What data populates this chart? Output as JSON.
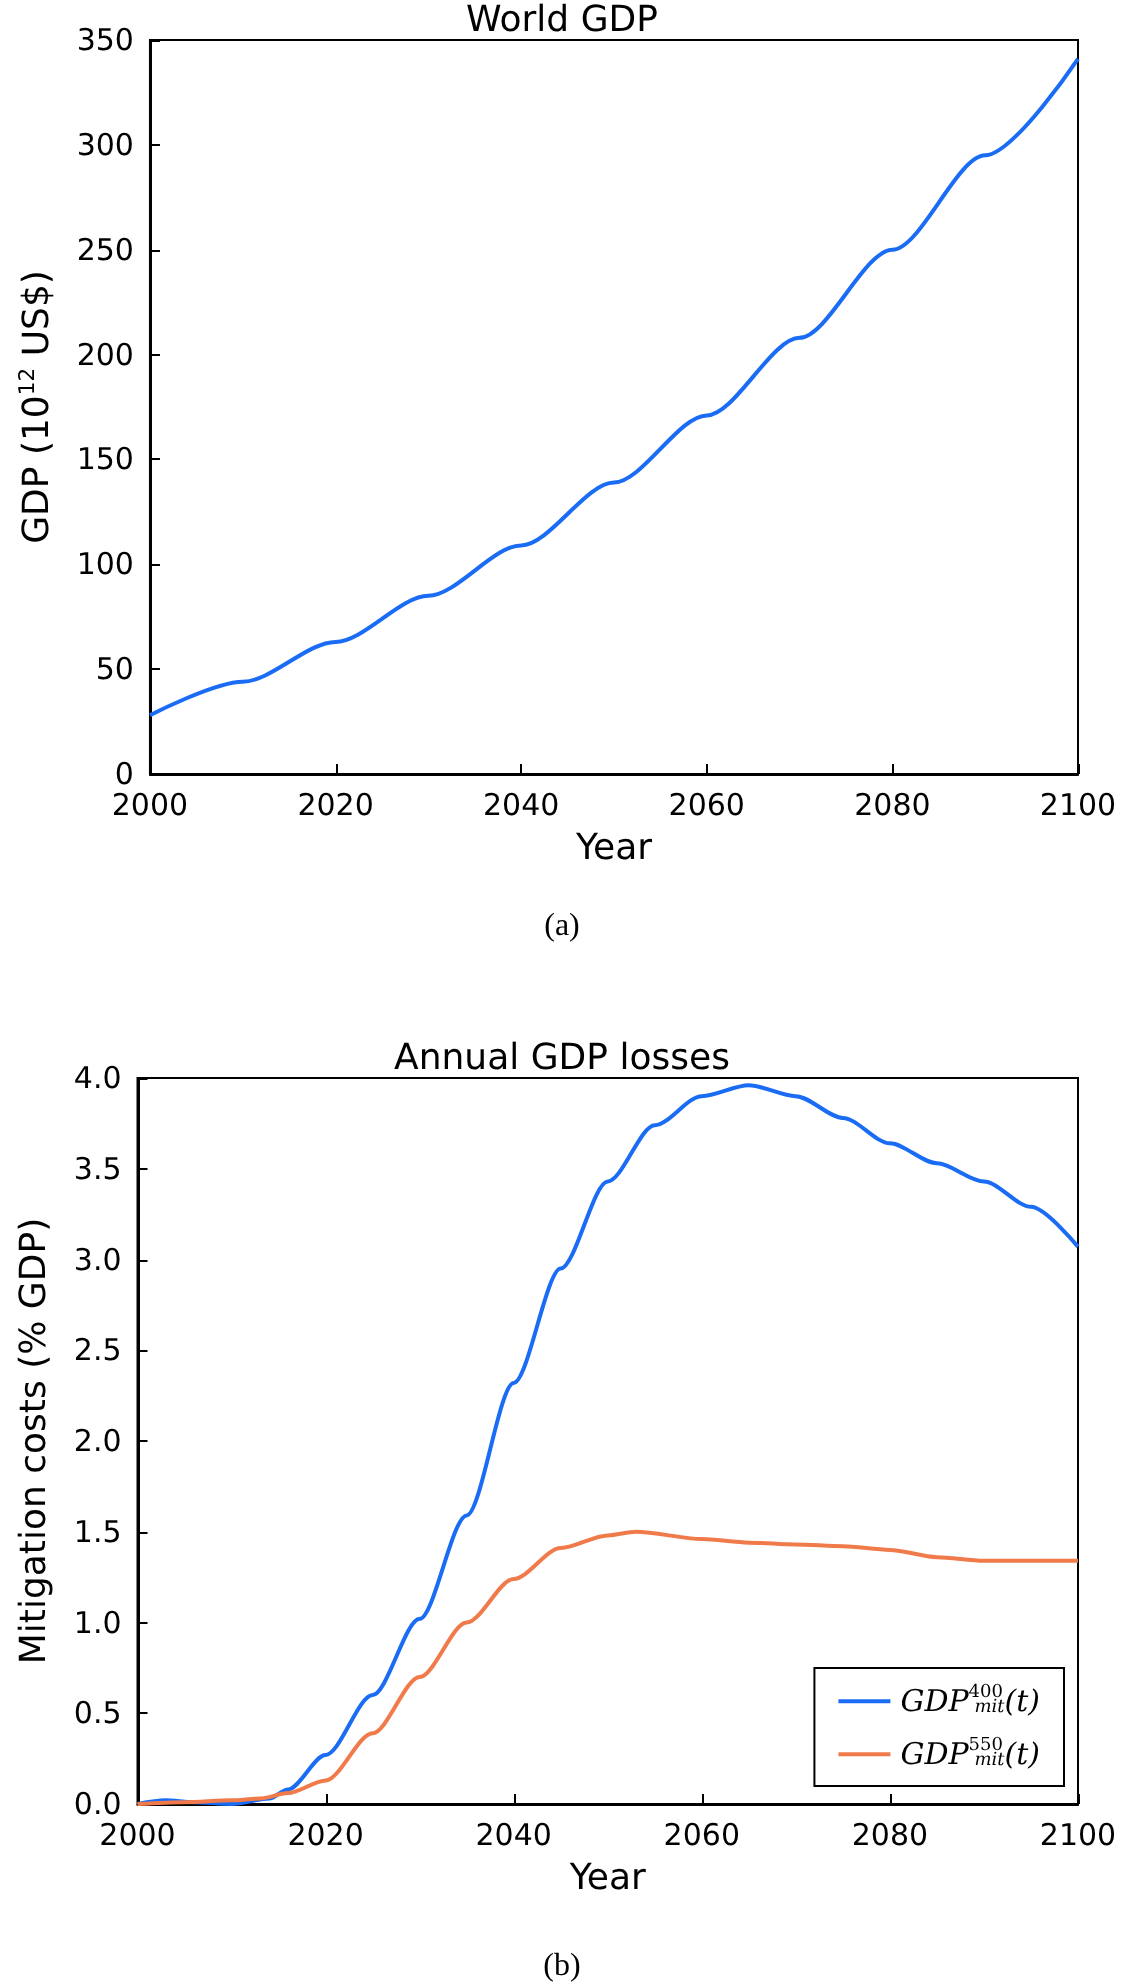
{
  "chart_data": [
    {
      "type": "line",
      "title": "World GDP",
      "xlabel": "Year",
      "ylabel": "GDP (10$^{12}$ US$)",
      "annotations": [
        "(a)"
      ],
      "x": [
        2000,
        2010,
        2020,
        2030,
        2040,
        2050,
        2060,
        2070,
        2080,
        2090,
        2100
      ],
      "series": [
        {
          "color": "#1a6cf5",
          "values": [
            28,
            44,
            63,
            85,
            109,
            139,
            171,
            208,
            250,
            295,
            341
          ]
        }
      ],
      "xlim": [
        2000,
        2100
      ],
      "xticks": [
        2000,
        2020,
        2040,
        2060,
        2080,
        2100
      ],
      "ylim": [
        0,
        350
      ],
      "yticks": [
        0,
        50,
        100,
        150,
        200,
        250,
        300,
        350
      ],
      "grid": false,
      "legend": false,
      "line_style": "solid",
      "marker": "none"
    },
    {
      "type": "line",
      "title": "Annual GDP losses",
      "xlabel": "Year",
      "ylabel": "Mitigation costs (% GDP)",
      "annotations": [
        "(b)"
      ],
      "series": [
        {
          "name": "GDP$^{400}$$_{mit}$(t)",
          "color": "#1a6cf5",
          "x": [
            2000,
            2003,
            2006,
            2010,
            2014,
            2016,
            2020,
            2025,
            2030,
            2035,
            2040,
            2045,
            2050,
            2055,
            2060,
            2065,
            2070,
            2075,
            2080,
            2085,
            2090,
            2095,
            2100
          ],
          "values": [
            0,
            0.02,
            0.01,
            0,
            0.03,
            0.08,
            0.27,
            0.6,
            1.02,
            1.59,
            2.32,
            2.95,
            3.43,
            3.74,
            3.9,
            3.96,
            3.9,
            3.78,
            3.64,
            3.53,
            3.43,
            3.29,
            3.07
          ]
        },
        {
          "name": "GDP$^{550}$$_{mit}$(t)",
          "color": "#f07a4a",
          "x": [
            2000,
            2005,
            2010,
            2013,
            2016,
            2020,
            2025,
            2030,
            2035,
            2040,
            2045,
            2050,
            2053,
            2060,
            2065,
            2070,
            2075,
            2080,
            2085,
            2090,
            2100
          ],
          "values": [
            0,
            0.01,
            0.02,
            0.03,
            0.06,
            0.13,
            0.39,
            0.7,
            1.0,
            1.24,
            1.41,
            1.48,
            1.5,
            1.46,
            1.44,
            1.43,
            1.42,
            1.4,
            1.36,
            1.34,
            1.34
          ]
        }
      ],
      "xlim": [
        2000,
        2100
      ],
      "xticks": [
        2000,
        2020,
        2040,
        2060,
        2080,
        2100
      ],
      "ylim": [
        0,
        4
      ],
      "yticks": [
        {
          "value": 0,
          "label": "0.0"
        },
        0.5,
        {
          "value": 1,
          "label": "1.0"
        },
        1.5,
        {
          "value": 2,
          "label": "2.0"
        },
        2.5,
        {
          "value": 3,
          "label": "3.0"
        },
        3.5,
        {
          "value": 4,
          "label": "4.0"
        }
      ],
      "grid": false,
      "legend": "bottom right",
      "line_style": "solid",
      "marker": "none"
    }
  ]
}
